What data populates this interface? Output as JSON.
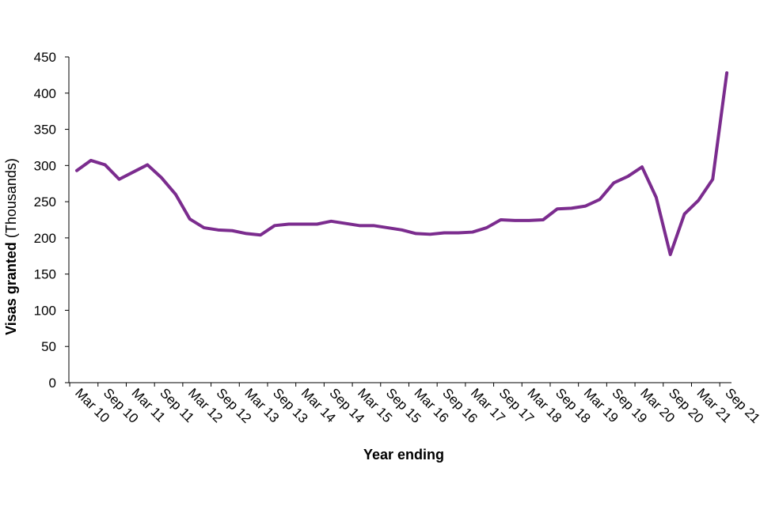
{
  "chart_data": {
    "type": "line",
    "title": "",
    "xlabel": "Year ending",
    "ylabel_bold": "Visas granted",
    "ylabel_light": " (Thousands)",
    "ylim": [
      0,
      450
    ],
    "yticks": [
      0,
      50,
      100,
      150,
      200,
      250,
      300,
      350,
      400,
      450
    ],
    "grid": false,
    "legend": "none",
    "line_color": "#7B2C8E",
    "x": [
      "Mar 10",
      "Jun 10",
      "Sep 10",
      "Dec 10",
      "Mar 11",
      "Jun 11",
      "Sep 11",
      "Dec 11",
      "Mar 12",
      "Jun 12",
      "Sep 12",
      "Dec 12",
      "Mar 13",
      "Jun 13",
      "Sep 13",
      "Dec 13",
      "Mar 14",
      "Jun 14",
      "Sep 14",
      "Dec 14",
      "Mar 15",
      "Jun 15",
      "Sep 15",
      "Dec 15",
      "Mar 16",
      "Jun 16",
      "Sep 16",
      "Dec 16",
      "Mar 17",
      "Jun 17",
      "Sep 17",
      "Dec 17",
      "Mar 18",
      "Jun 18",
      "Sep 18",
      "Dec 18",
      "Mar 19",
      "Jun 19",
      "Sep 19",
      "Dec 19",
      "Mar 20",
      "Jun 20",
      "Sep 20",
      "Dec 20",
      "Mar 21",
      "Jun 21",
      "Sep 21"
    ],
    "x_tick_labels": [
      "Mar 10",
      "Sep 10",
      "Mar 11",
      "Sep 11",
      "Mar 12",
      "Sep 12",
      "Mar 13",
      "Sep 13",
      "Mar 14",
      "Sep 14",
      "Mar 15",
      "Sep 15",
      "Mar 16",
      "Sep 16",
      "Mar 17",
      "Sep 17",
      "Mar 18",
      "Sep 18",
      "Mar 19",
      "Sep 19",
      "Mar 20",
      "Sep 20",
      "Mar 21",
      "Sep 21"
    ],
    "series": [
      {
        "values": [
          293,
          307,
          301,
          281,
          291,
          301,
          283,
          260,
          226,
          214,
          211,
          210,
          206,
          204,
          217,
          219,
          219,
          219,
          223,
          220,
          217,
          217,
          214,
          211,
          206,
          205,
          207,
          207,
          208,
          214,
          225,
          224,
          224,
          225,
          240,
          241,
          244,
          253,
          276,
          285,
          298,
          256,
          177,
          233,
          252,
          281,
          428
        ]
      }
    ]
  }
}
